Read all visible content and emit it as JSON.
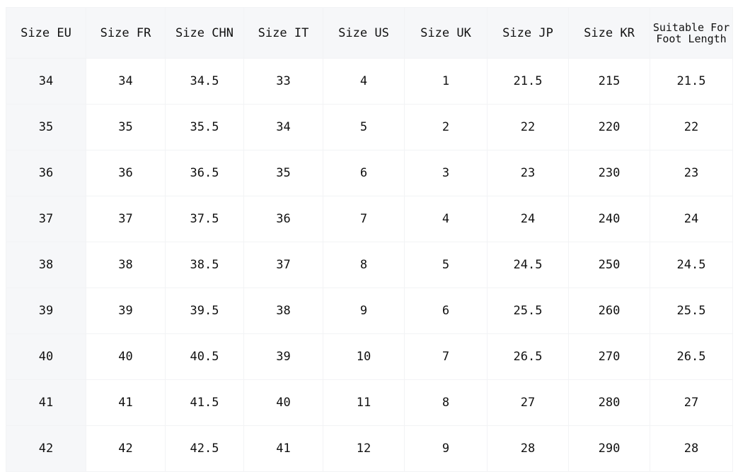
{
  "headers": [
    "Size EU",
    "Size FR",
    "Size CHN",
    "Size IT",
    "Size US",
    "Size UK",
    "Size JP",
    "Size KR",
    "Suitable For Foot Length"
  ],
  "rows": [
    [
      "34",
      "34",
      "34.5",
      "33",
      "4",
      "1",
      "21.5",
      "215",
      "21.5"
    ],
    [
      "35",
      "35",
      "35.5",
      "34",
      "5",
      "2",
      "22",
      "220",
      "22"
    ],
    [
      "36",
      "36",
      "36.5",
      "35",
      "6",
      "3",
      "23",
      "230",
      "23"
    ],
    [
      "37",
      "37",
      "37.5",
      "36",
      "7",
      "4",
      "24",
      "240",
      "24"
    ],
    [
      "38",
      "38",
      "38.5",
      "37",
      "8",
      "5",
      "24.5",
      "250",
      "24.5"
    ],
    [
      "39",
      "39",
      "39.5",
      "38",
      "9",
      "6",
      "25.5",
      "260",
      "25.5"
    ],
    [
      "40",
      "40",
      "40.5",
      "39",
      "10",
      "7",
      "26.5",
      "270",
      "26.5"
    ],
    [
      "41",
      "41",
      "41.5",
      "40",
      "11",
      "8",
      "27",
      "280",
      "27"
    ],
    [
      "42",
      "42",
      "42.5",
      "41",
      "12",
      "9",
      "28",
      "290",
      "28"
    ]
  ],
  "colors": {
    "header_bg": "#f6f7f9",
    "first_column_bg": "#f6f7f9",
    "text": "#111111"
  }
}
